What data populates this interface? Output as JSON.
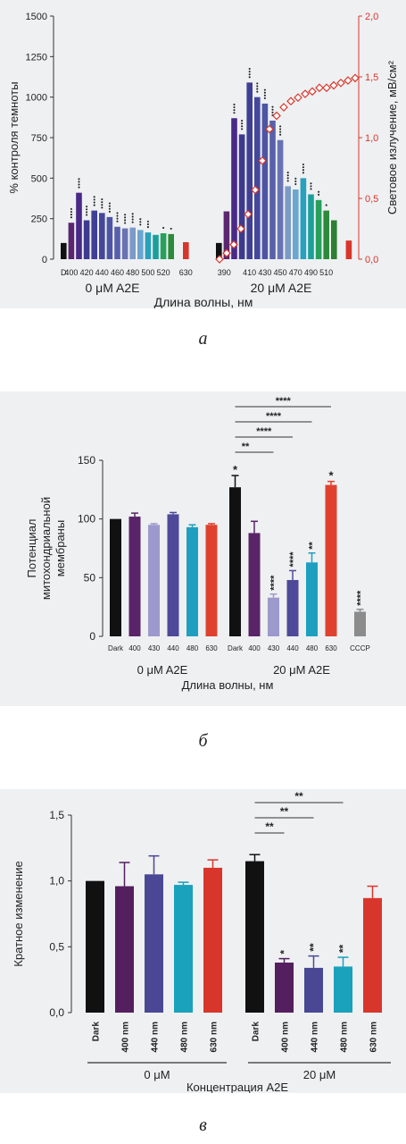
{
  "captions": [
    "а",
    "б",
    "в"
  ],
  "chart_data": [
    {
      "type": "bar",
      "ylabel": "% контроля темноты",
      "y2label": "Световое излучение, мВ/см²",
      "xlabel": "Длина волны, нм",
      "ylim": [
        0,
        1500
      ],
      "y2lim": [
        0,
        2.0
      ],
      "yticks": [
        "0",
        "250",
        "500",
        "750",
        "1000",
        "1250",
        "1500"
      ],
      "y2ticks": [
        "0,0",
        "0,5",
        "1,0",
        "1,5",
        "2,0"
      ],
      "groups": [
        {
          "label": "0 μM  A2E",
          "tick_labels": [
            "D",
            "400",
            "420",
            "440",
            "460",
            "480",
            "500",
            "520",
            "630"
          ],
          "bars": [
            {
              "v": 100,
              "c": "#111111",
              "star": ""
            },
            {
              "v": 225,
              "c": "#5b2670",
              "star": "****"
            },
            {
              "v": 410,
              "c": "#4a2a86",
              "star": "****"
            },
            {
              "v": 240,
              "c": "#3e3a8e",
              "star": "****"
            },
            {
              "v": 300,
              "c": "#3f3f94",
              "star": "****"
            },
            {
              "v": 285,
              "c": "#45479a",
              "star": "****"
            },
            {
              "v": 260,
              "c": "#4d55a3",
              "star": "****"
            },
            {
              "v": 200,
              "c": "#5860aa",
              "star": "****"
            },
            {
              "v": 190,
              "c": "#6873b4",
              "star": "****"
            },
            {
              "v": 195,
              "c": "#7b9ac6",
              "star": "****"
            },
            {
              "v": 180,
              "c": "#6aa6cf",
              "star": "***"
            },
            {
              "v": 165,
              "c": "#2aa1bc",
              "star": "***"
            },
            {
              "v": 150,
              "c": "#1c9f9a",
              "star": ""
            },
            {
              "v": 160,
              "c": "#27a05c",
              "star": "*"
            },
            {
              "v": 155,
              "c": "#2c8a3a",
              "star": "*"
            },
            {
              "v": 105,
              "c": "#d9362b",
              "star": ""
            }
          ]
        },
        {
          "label": "20 μM  A2E",
          "tick_labels": [
            "390",
            "410",
            "430",
            "450",
            "470",
            "490",
            "510"
          ],
          "bars": [
            {
              "v": 100,
              "c": "#111111",
              "star": ""
            },
            {
              "v": 295,
              "c": "#5b2670",
              "star": ""
            },
            {
              "v": 870,
              "c": "#4a2a86",
              "star": "****"
            },
            {
              "v": 770,
              "c": "#3e3a8e",
              "star": "****"
            },
            {
              "v": 1090,
              "c": "#3f3f94",
              "star": "****"
            },
            {
              "v": 1000,
              "c": "#45479a",
              "star": "****"
            },
            {
              "v": 960,
              "c": "#4d55a3",
              "star": "****"
            },
            {
              "v": 855,
              "c": "#5860aa",
              "star": "****"
            },
            {
              "v": 735,
              "c": "#6873b4",
              "star": "****"
            },
            {
              "v": 450,
              "c": "#7b9ac6",
              "star": "****"
            },
            {
              "v": 430,
              "c": "#6aa6cf",
              "star": "***"
            },
            {
              "v": 500,
              "c": "#2aa1bc",
              "star": "****"
            },
            {
              "v": 400,
              "c": "#1c9f9a",
              "star": "***"
            },
            {
              "v": 365,
              "c": "#27a05c",
              "star": "**"
            },
            {
              "v": 300,
              "c": "#2c8a3a",
              "star": "*"
            },
            {
              "v": 240,
              "c": "#2e7e34",
              "star": ""
            },
            {
              "v": 115,
              "c": "#d9362b",
              "star": ""
            }
          ],
          "irradiance": [
            0.0,
            0.05,
            0.12,
            0.25,
            0.37,
            0.57,
            0.81,
            1.07,
            1.18,
            1.25,
            1.3,
            1.33,
            1.36,
            1.38,
            1.41,
            1.41,
            1.43,
            1.45,
            1.47,
            1.49
          ]
        }
      ]
    },
    {
      "type": "bar",
      "ylabel": "Потенциал митохондриальной мембраны",
      "xlabel": "Длина волны, нм",
      "ylim": [
        0,
        150
      ],
      "yticks": [
        "0",
        "50",
        "100",
        "150"
      ],
      "groups": [
        {
          "label": "0 μM  A2E",
          "bars": [
            {
              "cat": "Dark",
              "v": 100,
              "err": 0,
              "c": "#111111",
              "star": ""
            },
            {
              "cat": "400",
              "v": 102,
              "err": 3,
              "c": "#5a2468",
              "star": ""
            },
            {
              "cat": "430",
              "v": 95,
              "err": 1,
              "c": "#9c99cc",
              "star": ""
            },
            {
              "cat": "440",
              "v": 104,
              "err": 1.5,
              "c": "#4e4a99",
              "star": ""
            },
            {
              "cat": "480",
              "v": 93,
              "err": 2,
              "c": "#1f9fc0",
              "star": ""
            },
            {
              "cat": "630",
              "v": 95,
              "err": 1,
              "c": "#e0412f",
              "star": ""
            }
          ]
        },
        {
          "label": "20 μM  A2E",
          "bars": [
            {
              "cat": "Dark",
              "v": 127,
              "err": 10,
              "c": "#111111",
              "star": "*"
            },
            {
              "cat": "400",
              "v": 88,
              "err": 10,
              "c": "#5a2468",
              "star": ""
            },
            {
              "cat": "430",
              "v": 33,
              "err": 3,
              "c": "#9c99cc",
              "star": "****"
            },
            {
              "cat": "440",
              "v": 48,
              "err": 8,
              "c": "#4e4a99",
              "star": "****"
            },
            {
              "cat": "480",
              "v": 63,
              "err": 8,
              "c": "#1f9fc0",
              "star": "**"
            },
            {
              "cat": "630",
              "v": 129,
              "err": 3,
              "c": "#e0412f",
              "star": "*"
            },
            {
              "cat": "CCCP",
              "v": 21,
              "err": 2,
              "c": "#8c8c8c",
              "star": "****"
            }
          ]
        }
      ],
      "brackets": [
        {
          "from": "Dark",
          "to": "430",
          "label": "**"
        },
        {
          "from": "Dark",
          "to": "440",
          "label": "****"
        },
        {
          "from": "Dark",
          "to": "480",
          "label": "****"
        },
        {
          "from": "Dark",
          "to": "630",
          "label": "****"
        }
      ]
    },
    {
      "type": "bar",
      "ylabel": "Кратное изменение",
      "xlabel": "Концентрация A2E",
      "ylim": [
        0,
        1.5
      ],
      "yticks": [
        "0,0",
        "0,5",
        "1,0",
        "1,5"
      ],
      "groups": [
        {
          "label": "0 μM",
          "bars": [
            {
              "cat": "Dark",
              "v": 1.0,
              "err": 0,
              "c": "#111111",
              "star": ""
            },
            {
              "cat": "400 nm",
              "v": 0.96,
              "err": 0.18,
              "c": "#531f5e",
              "star": ""
            },
            {
              "cat": "440 nm",
              "v": 1.05,
              "err": 0.14,
              "c": "#4a4894",
              "star": ""
            },
            {
              "cat": "480 nm",
              "v": 0.97,
              "err": 0.02,
              "c": "#1aa1bc",
              "star": ""
            },
            {
              "cat": "630 nm",
              "v": 1.1,
              "err": 0.06,
              "c": "#d9362b",
              "star": ""
            }
          ]
        },
        {
          "label": "20 μM",
          "bars": [
            {
              "cat": "Dark",
              "v": 1.15,
              "err": 0.05,
              "c": "#111111",
              "star": ""
            },
            {
              "cat": "400 nm",
              "v": 0.38,
              "err": 0.03,
              "c": "#531f5e",
              "star": "*"
            },
            {
              "cat": "440 nm",
              "v": 0.34,
              "err": 0.09,
              "c": "#4a4894",
              "star": "**"
            },
            {
              "cat": "480 nm",
              "v": 0.35,
              "err": 0.07,
              "c": "#1aa1bc",
              "star": "**"
            },
            {
              "cat": "630 nm",
              "v": 0.87,
              "err": 0.09,
              "c": "#d9362b",
              "star": ""
            }
          ]
        }
      ],
      "brackets": [
        {
          "from": "Dark",
          "to": "400 nm",
          "label": "**"
        },
        {
          "from": "Dark",
          "to": "440 nm",
          "label": "**"
        },
        {
          "from": "Dark",
          "to": "480 nm",
          "label": "**"
        }
      ]
    }
  ]
}
